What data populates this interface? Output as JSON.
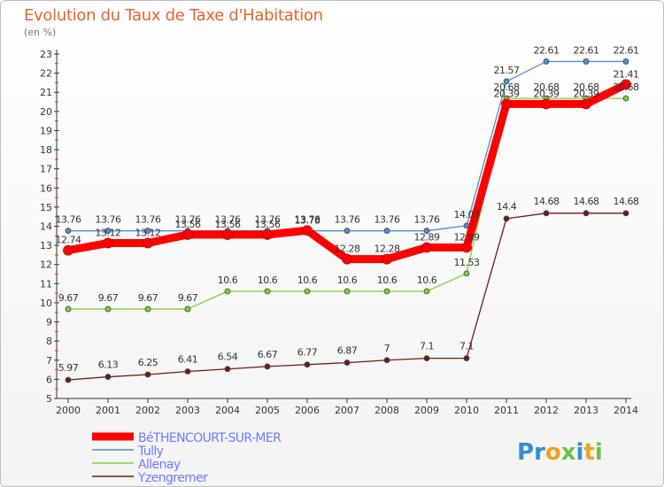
{
  "chart_data": {
    "type": "line",
    "title": "Evolution du Taux de Taxe d'Habitation",
    "unit_label": "(en %)",
    "x": [
      "2000",
      "2001",
      "2002",
      "2003",
      "2004",
      "2005",
      "2006",
      "2007",
      "2008",
      "2009",
      "2010",
      "2011",
      "2012",
      "2013",
      "2014"
    ],
    "y_ticks": [
      "5",
      "6",
      "7",
      "8",
      "9",
      "10",
      "11",
      "12",
      "13",
      "14",
      "15",
      "16",
      "17",
      "18",
      "19",
      "20",
      "21",
      "22",
      "23"
    ],
    "ylim": [
      5,
      23
    ],
    "grid": false,
    "series": [
      {
        "name": "BéTHENCOURT-SUR-MER",
        "color": "#ff0000",
        "values": [
          12.74,
          13.12,
          13.12,
          13.56,
          13.56,
          13.56,
          13.78,
          12.28,
          12.28,
          12.89,
          12.89,
          20.39,
          20.39,
          20.39,
          21.41
        ],
        "labels": [
          "12.74",
          "13.12",
          "13.12",
          "13.56",
          "13.56",
          "13.56",
          "13.78",
          "12.28",
          "12.28",
          "12.89",
          "12.89",
          "20.39",
          "20.39",
          "20.39",
          "21.41"
        ]
      },
      {
        "name": "Tully",
        "color": "#4f8fd0",
        "values": [
          13.76,
          13.76,
          13.76,
          13.76,
          13.76,
          13.76,
          13.76,
          13.76,
          13.76,
          13.76,
          14.03,
          21.57,
          22.61,
          22.61,
          22.61
        ],
        "labels": [
          "13.76",
          "13.76",
          "13.76",
          "13.76",
          "13.76",
          "13.76",
          "13.76",
          "13.76",
          "13.76",
          "13.76",
          "14.03",
          "21.57",
          "22.61",
          "22.61",
          "22.61"
        ]
      },
      {
        "name": "Allenay",
        "color": "#80cf3a",
        "values": [
          9.67,
          9.67,
          9.67,
          9.67,
          10.6,
          10.6,
          10.6,
          10.6,
          10.6,
          10.6,
          11.53,
          20.68,
          20.68,
          20.68,
          20.68
        ],
        "labels": [
          "9.67",
          "9.67",
          "9.67",
          "9.67",
          "10.6",
          "10.6",
          "10.6",
          "10.6",
          "10.6",
          "10.6",
          "11.53",
          "20.68",
          "20.68",
          "20.68",
          "20.68"
        ]
      },
      {
        "name": "Yzengremer",
        "color": "#6b1a1a",
        "values": [
          5.97,
          6.13,
          6.25,
          6.41,
          6.54,
          6.67,
          6.77,
          6.87,
          7,
          7.1,
          7.1,
          14.4,
          14.68,
          14.68,
          14.68
        ],
        "labels": [
          "5.97",
          "6.13",
          "6.25",
          "6.41",
          "6.54",
          "6.67",
          "6.77",
          "6.87",
          "7",
          "7.1",
          "7.1",
          "14.4",
          "14.68",
          "14.68",
          "14.68"
        ]
      }
    ],
    "legend_position": "bottom-left"
  },
  "branding": {
    "logo_text": "Proxiti"
  }
}
